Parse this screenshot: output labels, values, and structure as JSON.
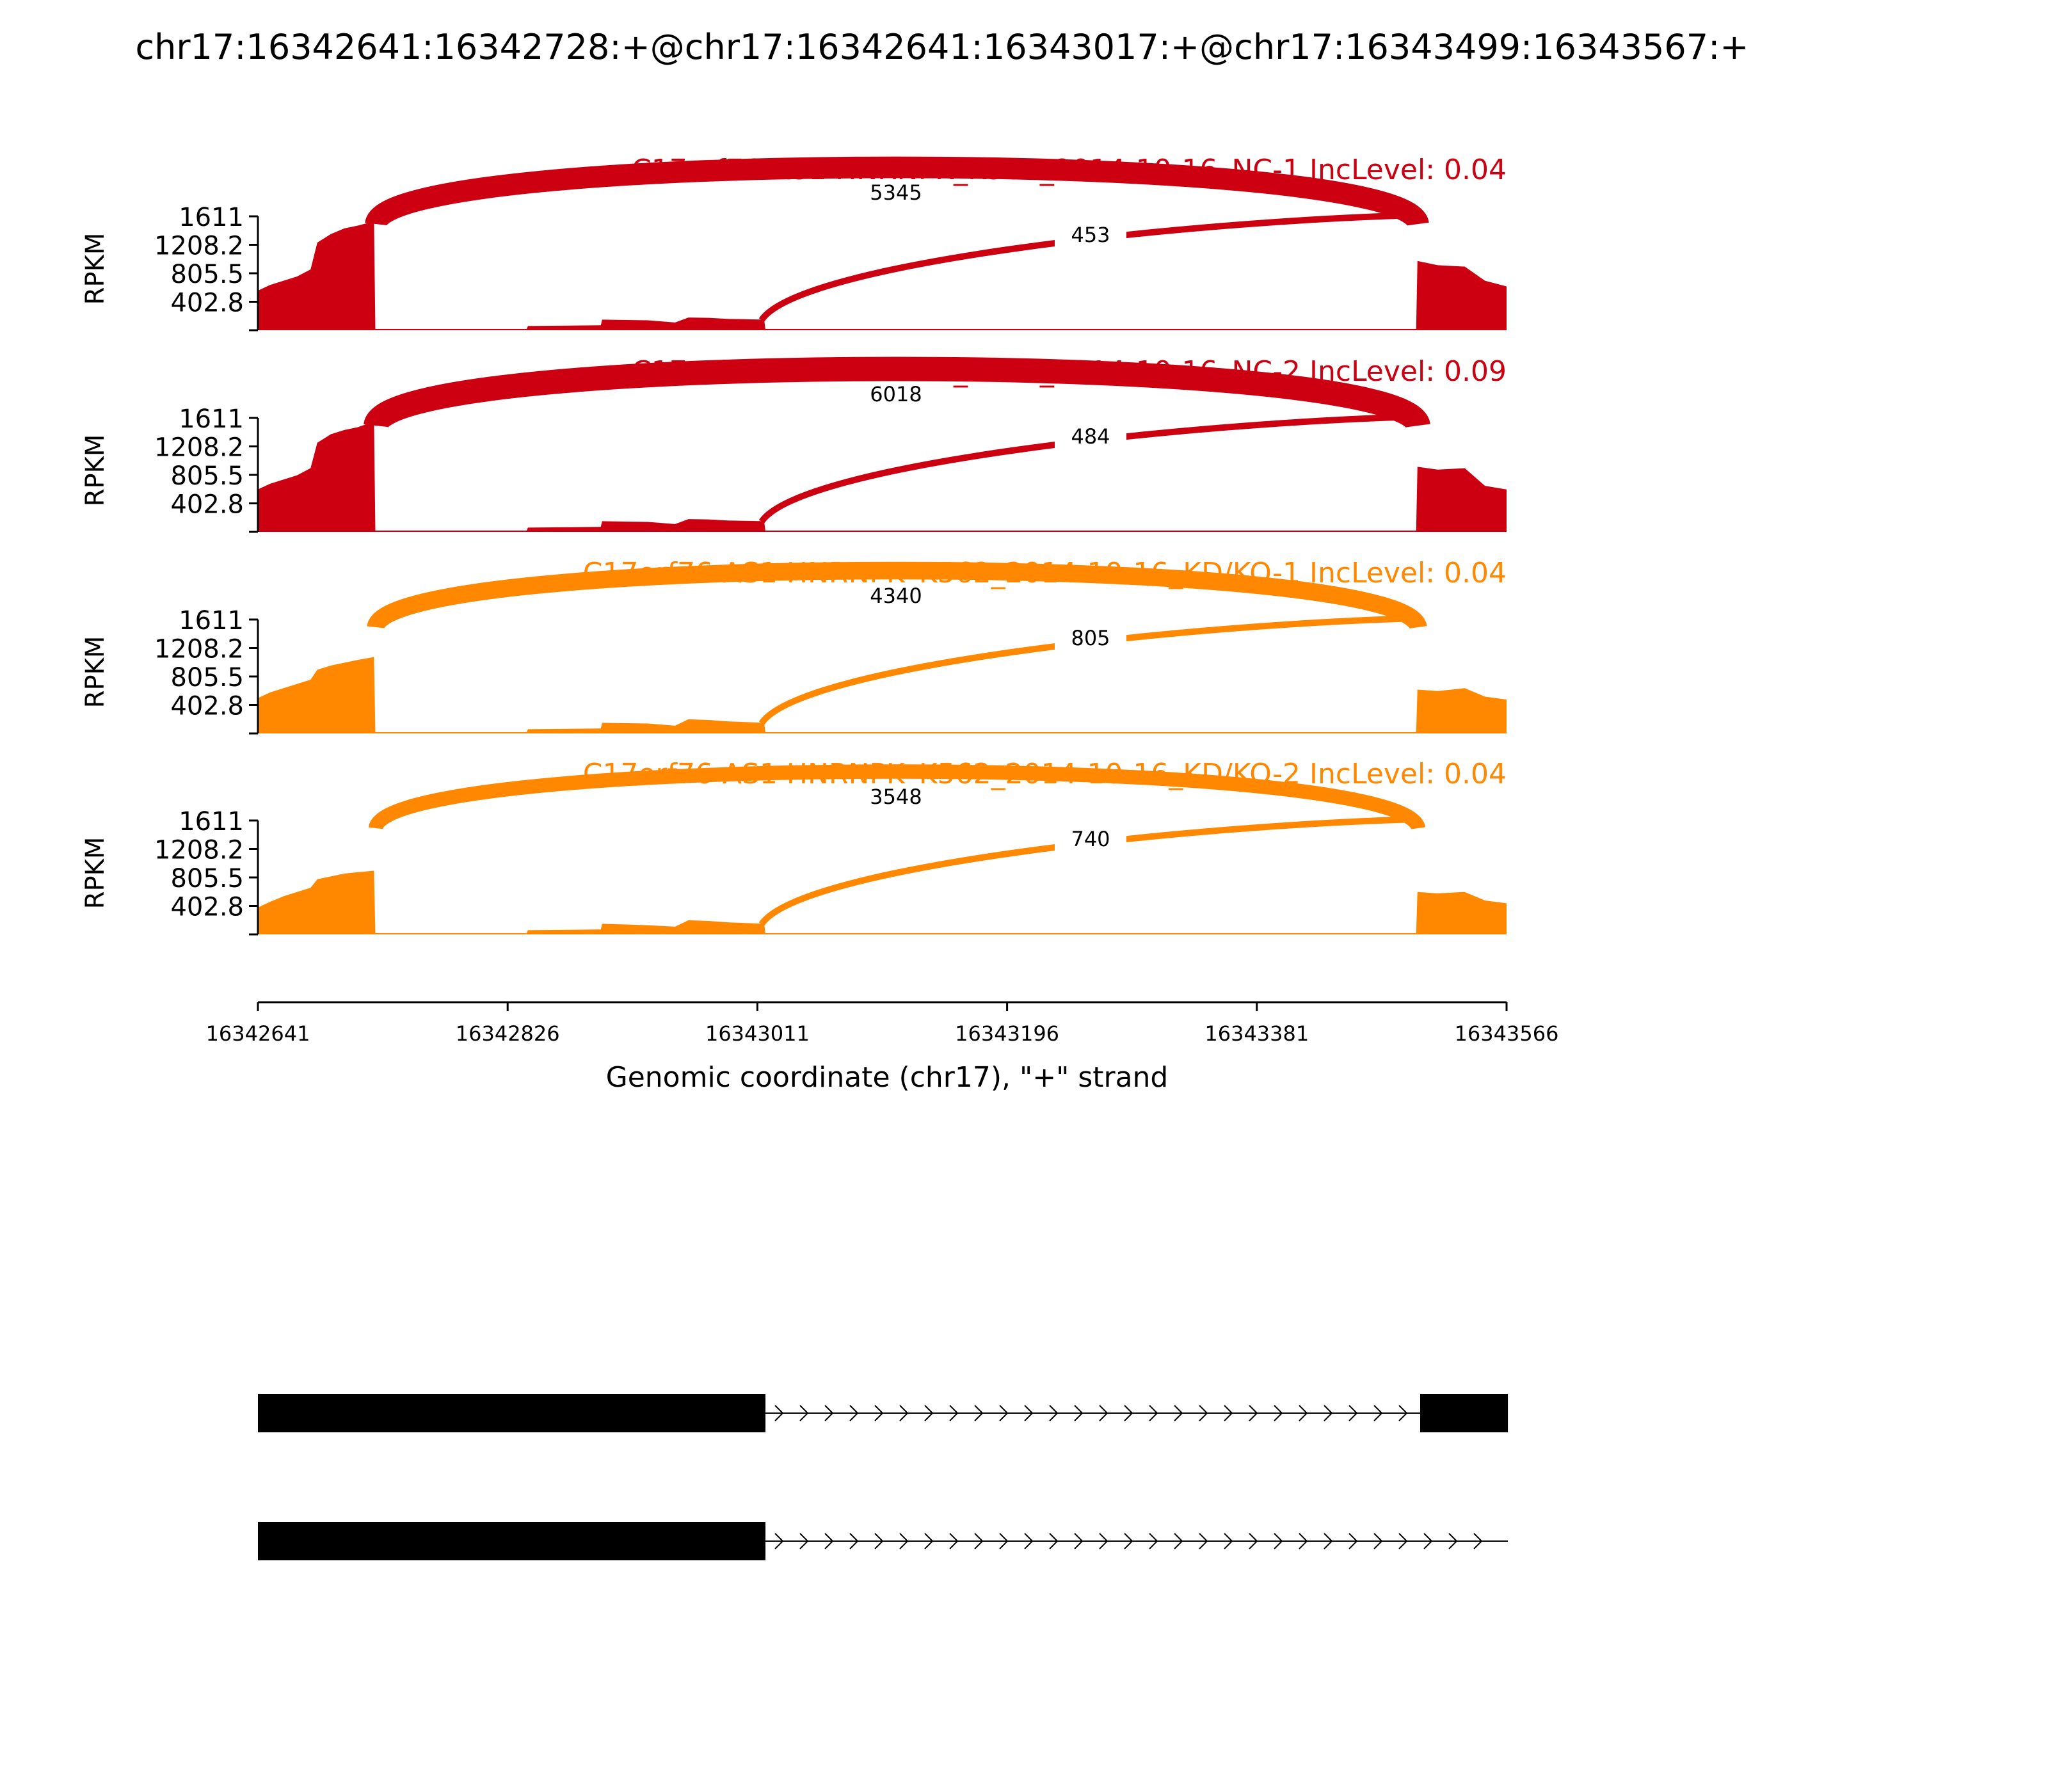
{
  "title": "chr17:16342641:16342728:+@chr17:16342641:16343017:+@chr17:16343499:16343567:+",
  "chart_data": {
    "type": "area",
    "title": "chr17:16342641:16342728:+@chr17:16342641:16343017:+@chr17:16343499:16343567:+",
    "xlabel": "Genomic coordinate (chr17), \"+\" strand",
    "ylabel": "RPKM",
    "xlim": [
      16342641,
      16343566
    ],
    "x_ticks": [
      16342641,
      16342826,
      16343011,
      16343196,
      16343381,
      16343566
    ],
    "x_tick_labels": [
      "16342641",
      "16342826",
      "16343011",
      "16343196",
      "16343381",
      "16343566"
    ],
    "ylim": [
      0,
      1611
    ],
    "y_ticks": [
      402.8,
      805.5,
      1208.2,
      1611
    ],
    "y_tick_labels": [
      "402.8",
      "805.5",
      "1208.2",
      "1611"
    ],
    "series": [
      {
        "name": "C17orf76-AS1 HNRNPK_K562_2014-10-16_NC-1 IncLevel: 0.04",
        "color": "#cc0011",
        "coverage": [
          [
            16342641,
            560
          ],
          [
            16342650,
            640
          ],
          [
            16342660,
            700
          ],
          [
            16342670,
            760
          ],
          [
            16342680,
            860
          ],
          [
            16342685,
            1240
          ],
          [
            16342695,
            1360
          ],
          [
            16342705,
            1440
          ],
          [
            16342715,
            1480
          ],
          [
            16342727,
            1540
          ],
          [
            16342728,
            0
          ],
          [
            16342840,
            10
          ],
          [
            16342841,
            60
          ],
          [
            16342895,
            70
          ],
          [
            16342896,
            150
          ],
          [
            16342930,
            140
          ],
          [
            16342950,
            110
          ],
          [
            16342960,
            180
          ],
          [
            16342975,
            175
          ],
          [
            16342990,
            160
          ],
          [
            16343016,
            150
          ],
          [
            16343017,
            8
          ],
          [
            16343499,
            5
          ],
          [
            16343500,
            980
          ],
          [
            16343515,
            920
          ],
          [
            16343535,
            900
          ],
          [
            16343550,
            700
          ],
          [
            16343566,
            620
          ]
        ],
        "junctions": [
          {
            "from": 16342728,
            "to": 16343499,
            "reads": 5345,
            "label": "5345"
          },
          {
            "from": 16343017,
            "to": 16343499,
            "reads": 453,
            "label": "453"
          }
        ]
      },
      {
        "name": "C17orf76-AS1 HNRNPK_K562_2014-10-16_NC-2 IncLevel: 0.09",
        "color": "#cc0011",
        "coverage": [
          [
            16342641,
            600
          ],
          [
            16342650,
            680
          ],
          [
            16342660,
            740
          ],
          [
            16342670,
            800
          ],
          [
            16342680,
            900
          ],
          [
            16342685,
            1260
          ],
          [
            16342695,
            1380
          ],
          [
            16342705,
            1440
          ],
          [
            16342715,
            1480
          ],
          [
            16342727,
            1560
          ],
          [
            16342728,
            0
          ],
          [
            16342840,
            10
          ],
          [
            16342841,
            60
          ],
          [
            16342895,
            70
          ],
          [
            16342896,
            150
          ],
          [
            16342930,
            140
          ],
          [
            16342950,
            110
          ],
          [
            16342960,
            180
          ],
          [
            16342975,
            175
          ],
          [
            16342990,
            160
          ],
          [
            16343016,
            150
          ],
          [
            16343017,
            8
          ],
          [
            16343499,
            5
          ],
          [
            16343500,
            920
          ],
          [
            16343515,
            880
          ],
          [
            16343535,
            900
          ],
          [
            16343550,
            650
          ],
          [
            16343566,
            600
          ]
        ],
        "junctions": [
          {
            "from": 16342728,
            "to": 16343499,
            "reads": 6018,
            "label": "6018"
          },
          {
            "from": 16343017,
            "to": 16343499,
            "reads": 484,
            "label": "484"
          }
        ]
      },
      {
        "name": "C17orf76-AS1 HNRNPK_K562_2014-10-16_KD/KO-1 IncLevel: 0.04",
        "color": "#ff8800",
        "coverage": [
          [
            16342641,
            500
          ],
          [
            16342650,
            580
          ],
          [
            16342660,
            640
          ],
          [
            16342670,
            700
          ],
          [
            16342680,
            760
          ],
          [
            16342685,
            900
          ],
          [
            16342695,
            960
          ],
          [
            16342705,
            1000
          ],
          [
            16342715,
            1040
          ],
          [
            16342727,
            1080
          ],
          [
            16342728,
            0
          ],
          [
            16342840,
            10
          ],
          [
            16342841,
            60
          ],
          [
            16342895,
            70
          ],
          [
            16342896,
            150
          ],
          [
            16342930,
            140
          ],
          [
            16342950,
            110
          ],
          [
            16342960,
            200
          ],
          [
            16342975,
            190
          ],
          [
            16342990,
            170
          ],
          [
            16343016,
            150
          ],
          [
            16343017,
            8
          ],
          [
            16343499,
            5
          ],
          [
            16343500,
            620
          ],
          [
            16343515,
            600
          ],
          [
            16343535,
            640
          ],
          [
            16343550,
            520
          ],
          [
            16343566,
            480
          ]
        ],
        "junctions": [
          {
            "from": 16342728,
            "to": 16343499,
            "reads": 4340,
            "label": "4340"
          },
          {
            "from": 16343017,
            "to": 16343499,
            "reads": 805,
            "label": "805"
          }
        ]
      },
      {
        "name": "C17orf76-AS1 HNRNPK_K562_2014-10-16_KD/KO-2 IncLevel: 0.04",
        "color": "#ff8800",
        "coverage": [
          [
            16342641,
            380
          ],
          [
            16342650,
            460
          ],
          [
            16342660,
            540
          ],
          [
            16342670,
            600
          ],
          [
            16342680,
            660
          ],
          [
            16342685,
            780
          ],
          [
            16342695,
            820
          ],
          [
            16342705,
            860
          ],
          [
            16342715,
            880
          ],
          [
            16342727,
            900
          ],
          [
            16342728,
            0
          ],
          [
            16342840,
            10
          ],
          [
            16342841,
            60
          ],
          [
            16342895,
            70
          ],
          [
            16342896,
            150
          ],
          [
            16342930,
            130
          ],
          [
            16342950,
            110
          ],
          [
            16342960,
            200
          ],
          [
            16342975,
            190
          ],
          [
            16342990,
            170
          ],
          [
            16343016,
            150
          ],
          [
            16343017,
            8
          ],
          [
            16343499,
            5
          ],
          [
            16343500,
            600
          ],
          [
            16343515,
            580
          ],
          [
            16343535,
            600
          ],
          [
            16343550,
            480
          ],
          [
            16343566,
            440
          ]
        ],
        "junctions": [
          {
            "from": 16342728,
            "to": 16343499,
            "reads": 3548,
            "label": "3548"
          },
          {
            "from": 16343017,
            "to": 16343499,
            "reads": 740,
            "label": "740"
          }
        ]
      }
    ],
    "transcripts": [
      {
        "exons": [
          [
            16342641,
            16342728
          ],
          [
            16342728,
            16343017
          ],
          [
            16343502,
            16343567
          ]
        ]
      },
      {
        "exons": [
          [
            16342641,
            16342728
          ],
          [
            16342728,
            16343017
          ]
        ],
        "intron_to": 16343567
      }
    ]
  }
}
